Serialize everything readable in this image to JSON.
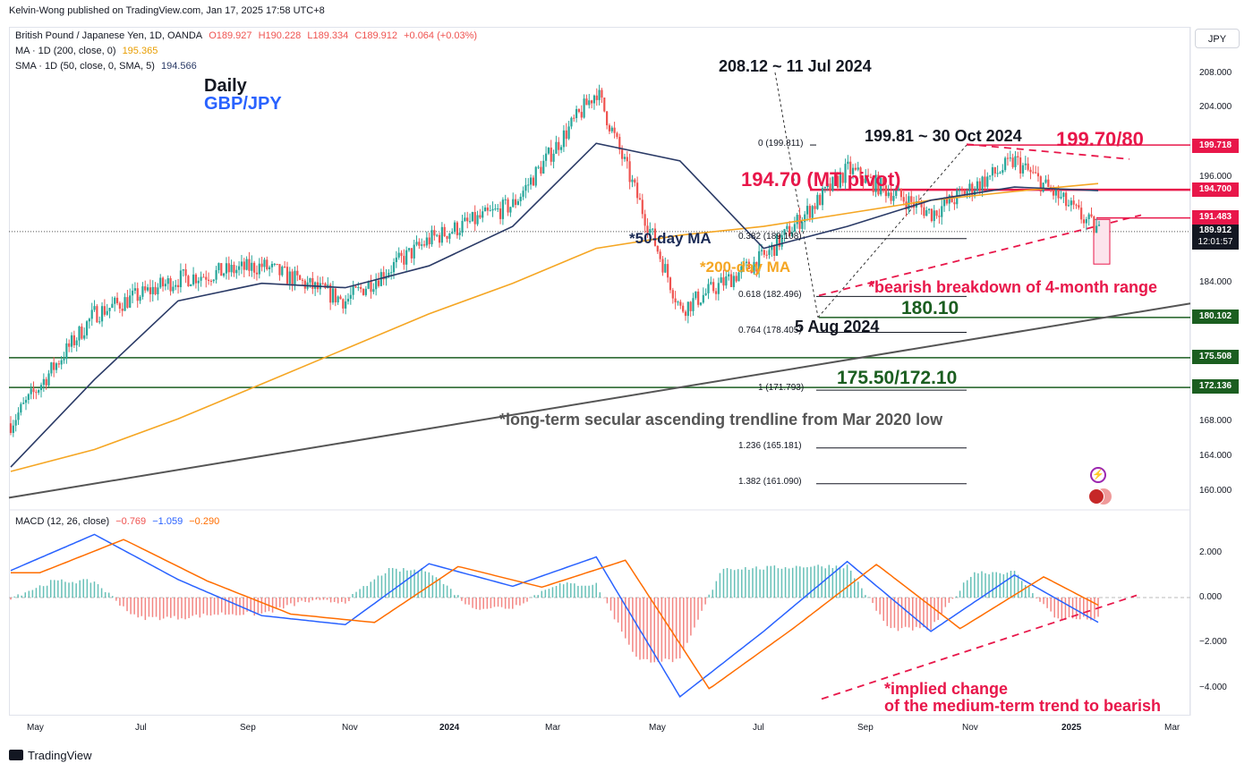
{
  "header": {
    "publisher": "Kelvin-Wong published on TradingView.com, Jan 17, 2025 17:58 UTC+8"
  },
  "legend": {
    "symbol": "British Pound / Japanese Yen, 1D, OANDA",
    "o": "O189.927",
    "h": "H190.228",
    "l": "L189.334",
    "c": "C189.912",
    "chg": "+0.064 (+0.03%)",
    "ma200_label": "MA · 1D (200, close, 0)",
    "ma200_val": "195.365",
    "sma50_label": "SMA · 1D (50, close, 0, SMA, 5)",
    "sma50_val": "194.566",
    "macd_label": "MACD (12, 26, close)",
    "macd_hist": "−0.769",
    "macd_line": "−1.059",
    "macd_signal": "−0.290"
  },
  "currency_button": "JPY",
  "price_tags": {
    "t199": "199.718",
    "t194": "194.700",
    "t191": "191.483",
    "last": "189.912",
    "countdown": "12:01:57",
    "t180": "180.102",
    "t175": "175.508",
    "t172": "172.136"
  },
  "price_axis": [
    "208.000",
    "204.000",
    "196.000",
    "184.000",
    "168.000",
    "164.000",
    "160.000"
  ],
  "macd_axis": [
    "2.000",
    "0.000",
    "−2.000",
    "−4.000"
  ],
  "time_axis": [
    "May",
    "Jul",
    "Sep",
    "Nov",
    "2024",
    "Mar",
    "May",
    "Jul",
    "Sep",
    "Nov",
    "2025",
    "Mar"
  ],
  "annotations": {
    "daily": "Daily",
    "pair": "GBP/JPY",
    "high_jul": "208.12 ~ 11 Jul 2024",
    "high_oct": "199.81 ~ 30 Oct 2024",
    "res_zone": "199.70/80",
    "pivot": "194.70 (MT pivot)",
    "ma50": "*50-day MA",
    "ma200": "*200-day MA",
    "breakdown": "*bearish breakdown of 4-month range",
    "sup1": "180.10",
    "low_aug": "5 Aug 2024",
    "sup2": "175.50/172.10",
    "trendline": "*long-term secular ascending trendline from Mar 2020 low",
    "macd_note1": "*implied change",
    "macd_note2": "of the medium-term trend to bearish",
    "fib0": "0 (199.811)",
    "fib382": "0.382 (189.108)",
    "fib618": "0.618 (182.496)",
    "fib764": "0.764 (178.405)",
    "fib1": "1 (171.793)",
    "fib1236": "1.236 (165.181)",
    "fib1382": "1.382 (161.090)"
  },
  "colors": {
    "up": "#26a69a",
    "down": "#ef5350",
    "ma50": "#2a3a66",
    "ma200": "#f5a623",
    "red_line": "#e8174a",
    "green_line": "#1b5e20",
    "trend": "#555555",
    "macd": "#2962ff",
    "signal": "#ff6d00"
  },
  "chart_data": {
    "type": "line",
    "title": "GBP/JPY Daily",
    "x": [
      "2023-05",
      "2023-07",
      "2023-09",
      "2023-11",
      "2024-01",
      "2024-03",
      "2024-05",
      "2024-07",
      "2024-08",
      "2024-09",
      "2024-10",
      "2024-11",
      "2024-12",
      "2025-01"
    ],
    "series": [
      {
        "name": "GBP/JPY close (approx.)",
        "values": [
          168.0,
          180.5,
          184.5,
          186.0,
          182.0,
          189.0,
          193.0,
          206.0,
          181.0,
          187.0,
          197.0,
          192.0,
          198.0,
          189.9
        ]
      },
      {
        "name": "*50-day MA (approx.)",
        "values": [
          163.0,
          173.0,
          182.0,
          184.0,
          183.5,
          186.0,
          190.5,
          200.0,
          198.0,
          188.0,
          190.5,
          193.5,
          195.0,
          194.6
        ]
      },
      {
        "name": "*200-day MA (approx.)",
        "values": [
          162.5,
          165.0,
          168.5,
          172.5,
          176.5,
          180.5,
          184.0,
          188.0,
          189.5,
          190.5,
          192.0,
          193.5,
          194.5,
          195.4
        ]
      }
    ],
    "levels": [
      199.81,
      199.7,
      194.7,
      191.48,
      180.1,
      175.5,
      172.1
    ],
    "ylim": [
      159,
      210
    ],
    "macd": {
      "ylim": [
        -5,
        3
      ],
      "values": [
        1.2,
        2.8,
        0.8,
        -0.8,
        -1.2,
        1.5,
        0.5,
        1.8,
        -4.4,
        -1.5,
        1.6,
        -1.5,
        1.0,
        -1.1
      ]
    }
  }
}
